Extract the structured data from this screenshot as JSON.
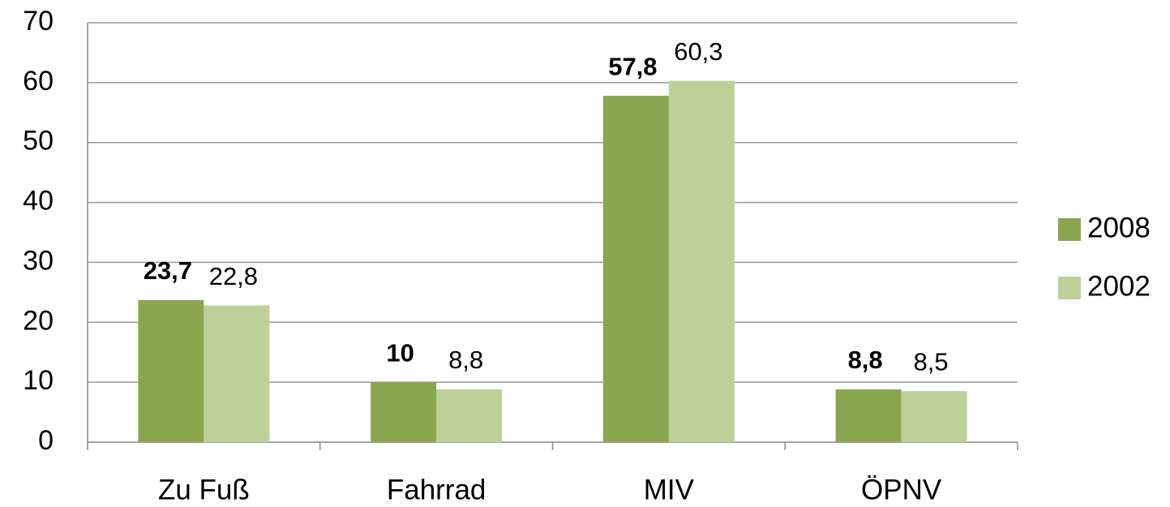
{
  "chart_data": {
    "type": "bar",
    "categories": [
      "Zu Fuß",
      "Fahrrad",
      "MIV",
      "ÖPNV"
    ],
    "series": [
      {
        "name": "2008",
        "color": "#8aa64f",
        "values": [
          23.7,
          10,
          57.8,
          8.8
        ],
        "value_labels": [
          "23,7",
          "10",
          "57,8",
          "8,8"
        ]
      },
      {
        "name": "2002",
        "color": "#bcd197",
        "values": [
          22.8,
          8.8,
          60.3,
          8.5
        ],
        "value_labels": [
          "22,8",
          "8,8",
          "60,3",
          "8,5"
        ]
      }
    ],
    "ylim": [
      0,
      70
    ],
    "yticks": [
      0,
      10,
      20,
      30,
      40,
      50,
      60,
      70
    ],
    "grid": true,
    "legend": "right"
  }
}
